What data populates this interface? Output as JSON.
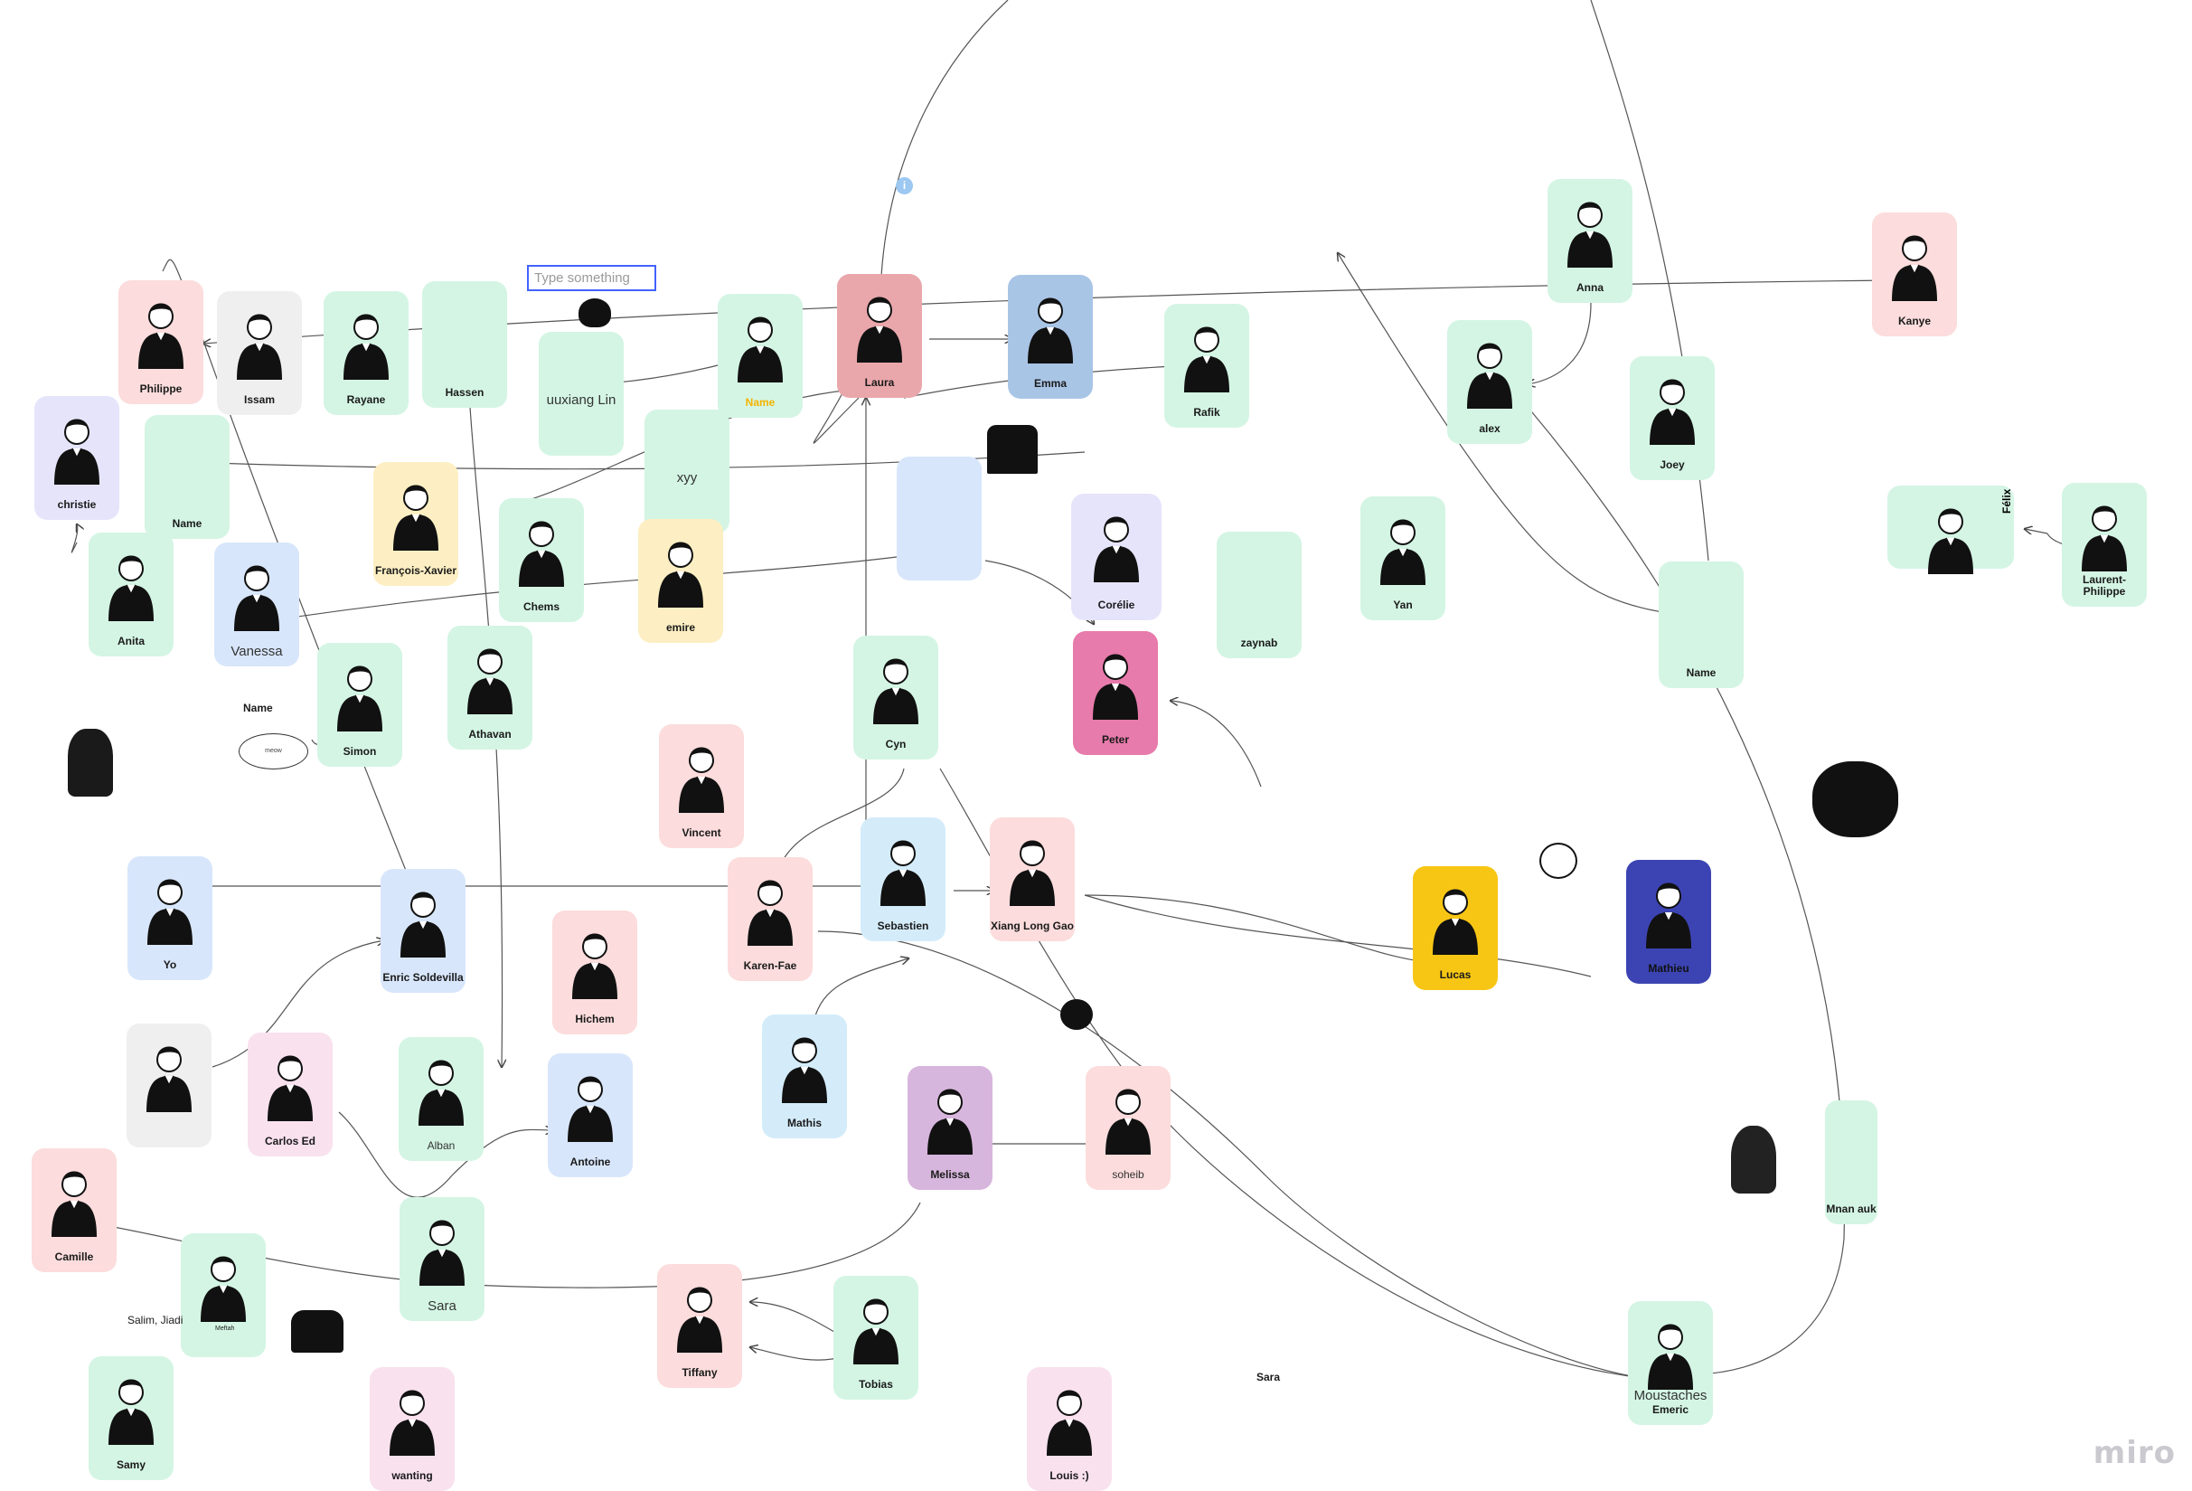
{
  "board": {
    "watermark": "miro",
    "text_input_placeholder": "Type something",
    "info_badge": "i",
    "speech_bubble": "meow"
  },
  "cards": [
    {
      "id": "philippe",
      "label": "Philippe",
      "color": "pink",
      "figure": "glasses-person-icon"
    },
    {
      "id": "issam",
      "label": "Issam",
      "color": "grey",
      "figure": "moustache-person-icon"
    },
    {
      "id": "rayane",
      "label": "Rayane",
      "color": "green",
      "figure": "short-hair-person-icon"
    },
    {
      "id": "hassen",
      "label": "Hassen",
      "color": "green",
      "figure": "none"
    },
    {
      "id": "uuxiang",
      "label": "uuxiang Lin",
      "color": "green",
      "figure": "none",
      "big": true
    },
    {
      "id": "name1",
      "label": "Name",
      "color": "green",
      "figure": "spiky-hair-person-icon",
      "label_color": "#f4b400"
    },
    {
      "id": "laura",
      "label": "Laura",
      "color": "rose",
      "figure": "laptop-person-icon"
    },
    {
      "id": "emma",
      "label": "Emma",
      "color": "steel",
      "figure": "laptop-bun-person-icon"
    },
    {
      "id": "rafik",
      "label": "Rafik",
      "color": "green",
      "figure": "jacket-person-icon"
    },
    {
      "id": "christie",
      "label": "christie",
      "color": "lav",
      "figure": "bun-person-icon"
    },
    {
      "id": "name2",
      "label": "Name",
      "color": "green",
      "figure": "none"
    },
    {
      "id": "francois",
      "label": "François-Xavier",
      "color": "yellow",
      "figure": "glasses-person-icon"
    },
    {
      "id": "xyy",
      "label": "xyy",
      "color": "green",
      "figure": "none",
      "big": true
    },
    {
      "id": "chems",
      "label": "Chems",
      "color": "green",
      "figure": "long-hair-person-icon"
    },
    {
      "id": "emire",
      "label": "emire",
      "color": "yellow",
      "figure": "cap-person-icon"
    },
    {
      "id": "anita",
      "label": "Anita",
      "color": "green",
      "figure": "curly-hair-person-icon"
    },
    {
      "id": "vanessa",
      "label": "Vanessa",
      "color": "blue",
      "figure": "ponytail-person-icon",
      "big": true
    },
    {
      "id": "simon",
      "label": "Simon",
      "color": "green",
      "figure": "bearded-person-icon"
    },
    {
      "id": "athavan",
      "label": "Athavan",
      "color": "green",
      "figure": "bearded-laptop-person-icon"
    },
    {
      "id": "blankblue",
      "label": "",
      "color": "blue",
      "figure": "none"
    },
    {
      "id": "corelie",
      "label": "Corélie",
      "color": "lav",
      "figure": "shirt-icon"
    },
    {
      "id": "zaynab",
      "label": "zaynab",
      "color": "green",
      "figure": "none"
    },
    {
      "id": "yan",
      "label": "Yan",
      "color": "green",
      "figure": "eyepatch-person-icon"
    },
    {
      "id": "anna",
      "label": "Anna",
      "color": "green",
      "figure": "ponytail-person-icon"
    },
    {
      "id": "alex",
      "label": "alex",
      "color": "green",
      "figure": "patterned-shirt-person-icon"
    },
    {
      "id": "joey",
      "label": "Joey",
      "color": "green",
      "figure": "shrug-person-icon"
    },
    {
      "id": "kanye",
      "label": "Kanye",
      "color": "pink",
      "figure": "faceless-person-icon"
    },
    {
      "id": "name3",
      "label": "Name",
      "color": "green",
      "figure": "none"
    },
    {
      "id": "felix",
      "label": "",
      "color": "green",
      "figure": "eyepatch-person-icon"
    },
    {
      "id": "laurent",
      "label": "Laurent-Philippe",
      "color": "green",
      "figure": "sunglasses-person-icon"
    },
    {
      "id": "cyn",
      "label": "Cyn",
      "color": "green",
      "figure": "ponytail-person-icon"
    },
    {
      "id": "peter",
      "label": "Peter",
      "color": "magenta",
      "figure": "arms-crossed-person-icon"
    },
    {
      "id": "vincent",
      "label": "Vincent",
      "color": "pink",
      "figure": "tshirt-person-icon"
    },
    {
      "id": "yo",
      "label": "Yo",
      "color": "blue",
      "figure": "sunglasses-person-icon"
    },
    {
      "id": "enric",
      "label": "Enric Soldevilla",
      "color": "blue",
      "figure": "patterned-shirt-person-icon"
    },
    {
      "id": "hichem",
      "label": "Hichem",
      "color": "pink",
      "figure": "arms-crossed-person-icon"
    },
    {
      "id": "karen",
      "label": "Karen-Fae",
      "color": "pink",
      "figure": "glasses-person-icon"
    },
    {
      "id": "sebastien",
      "label": "Sebastien",
      "color": "skyblue",
      "figure": "laptop-person-icon"
    },
    {
      "id": "xiang",
      "label": "Xiang Long Gao",
      "color": "pink",
      "figure": "afro-person-icon"
    },
    {
      "id": "lucas",
      "label": "Lucas",
      "color": "gold",
      "figure": "tshirt-person-icon"
    },
    {
      "id": "mathieu",
      "label": "Mathieu",
      "color": "indigo",
      "figure": "long-hair-person-icon"
    },
    {
      "id": "greyblank",
      "label": "",
      "color": "grey",
      "figure": "jacket-person-icon"
    },
    {
      "id": "carlos",
      "label": "Carlos Ed",
      "color": "lightpink",
      "figure": "moustache-person-icon"
    },
    {
      "id": "alban",
      "label": "Alban",
      "color": "green",
      "figure": "short-hair-person-icon",
      "light": true
    },
    {
      "id": "antoine",
      "label": "Antoine",
      "color": "blue",
      "figure": "curly-hair-person-icon"
    },
    {
      "id": "mathis",
      "label": "Mathis",
      "color": "skyblue",
      "figure": "mug-person-icon"
    },
    {
      "id": "melissa",
      "label": "Melissa",
      "color": "purple",
      "figure": "arms-crossed-person-icon"
    },
    {
      "id": "soheib",
      "label": "soheib",
      "color": "pink",
      "figure": "bearded-person-icon",
      "light": true
    },
    {
      "id": "mnanauk",
      "label": "Mnan auk",
      "color": "green",
      "figure": "none"
    },
    {
      "id": "camille",
      "label": "Camille",
      "color": "pink",
      "figure": "phone-person-icon"
    },
    {
      "id": "meftah",
      "label": "",
      "color": "green",
      "figure": "moustache-person-icon"
    },
    {
      "id": "sara",
      "label": "Sara",
      "color": "green",
      "figure": "phone-person-icon",
      "big": true
    },
    {
      "id": "tiffany",
      "label": "Tiffany",
      "color": "pink",
      "figure": "jacket-person-icon"
    },
    {
      "id": "tobias",
      "label": "Tobias",
      "color": "green",
      "figure": "small-head-icon"
    },
    {
      "id": "louis",
      "label": "Louis :)",
      "color": "lightpink",
      "figure": "moustache-person-icon"
    },
    {
      "id": "emeric",
      "label": "Emeric",
      "color": "green",
      "figure": "moustache-person-icon",
      "caption": "Moustaches"
    },
    {
      "id": "samy",
      "label": "Samy",
      "color": "green",
      "figure": "glasses-icon"
    },
    {
      "id": "wanting",
      "label": "wanting",
      "color": "lightpink",
      "figure": "shrug-person-icon"
    }
  ],
  "free_labels": {
    "name_free": "Name",
    "salim": "Salim, Jiadi",
    "sara_free": "Sara",
    "felix": "Félix",
    "meftah_small": "Meftah"
  },
  "colors": {
    "green": "#d4f5e4",
    "pink": "#fcdcdc",
    "grey": "#efefef",
    "blue": "#d8e6fb",
    "yellow": "#fdefc3",
    "lav": "#e6e4fb",
    "rose": "#e9a7ab",
    "steel": "#a9c5e6",
    "magenta": "#e77bab",
    "gold": "#f7c615",
    "indigo": "#3c44b3",
    "purple": "#d7b6dd",
    "lightpink": "#f9e1ee",
    "skyblue": "#d4ecfa",
    "accent": "#4262ff"
  }
}
